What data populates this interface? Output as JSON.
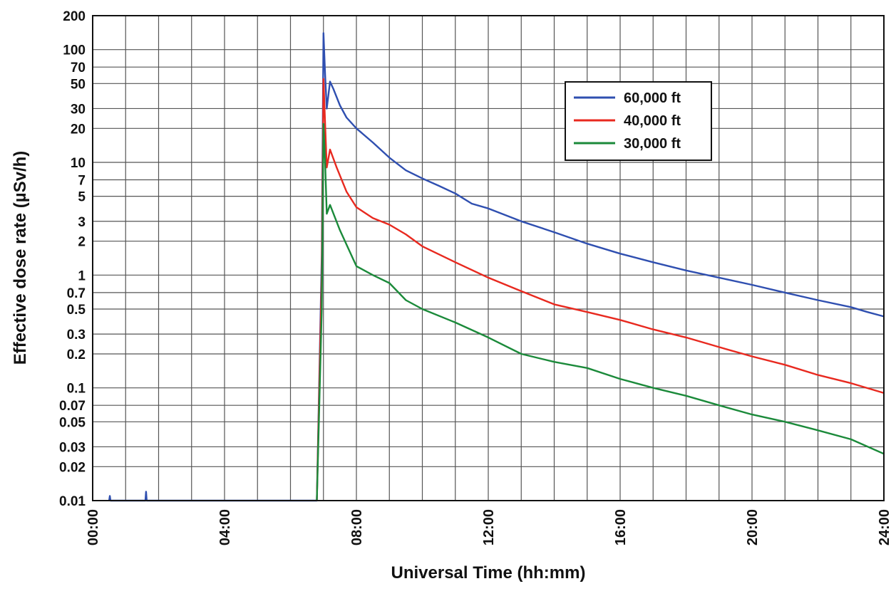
{
  "chart_data": {
    "type": "line",
    "title": "",
    "xlabel": "Universal Time (hh:mm)",
    "ylabel": "Effective dose rate (µSv/h)",
    "x_unit": "hours UT",
    "xlim": [
      0,
      24
    ],
    "ylim": [
      0.01,
      200
    ],
    "yscale": "log",
    "grid": true,
    "legend_position": "top-right",
    "x_tick_labels": [
      "00:00",
      "04:00",
      "08:00",
      "12:00",
      "16:00",
      "20:00",
      "24:00"
    ],
    "y_tick_labels": [
      "200",
      "100",
      "70",
      "50",
      "30",
      "20",
      "10",
      "7",
      "5",
      "3",
      "2",
      "1",
      "0.7",
      "0.5",
      "0.3",
      "0.2",
      "0.1",
      "0.07",
      "0.05",
      "0.03",
      "0.02",
      "0.01"
    ],
    "series": [
      {
        "name": "60,000 ft",
        "color": "#2f4fb0",
        "points": [
          [
            0.5,
            0.01
          ],
          [
            0.52,
            0.011
          ],
          [
            0.54,
            0.01
          ],
          [
            1.6,
            0.01
          ],
          [
            1.62,
            0.012
          ],
          [
            1.64,
            0.01
          ],
          [
            6.8,
            0.01
          ],
          [
            6.95,
            1.5
          ],
          [
            7.0,
            140
          ],
          [
            7.05,
            60
          ],
          [
            7.1,
            30
          ],
          [
            7.2,
            52
          ],
          [
            7.3,
            45
          ],
          [
            7.5,
            32
          ],
          [
            7.7,
            25
          ],
          [
            8.0,
            20
          ],
          [
            8.5,
            15
          ],
          [
            9.0,
            11
          ],
          [
            9.5,
            8.5
          ],
          [
            10.0,
            7.2
          ],
          [
            10.5,
            6.2
          ],
          [
            11.0,
            5.3
          ],
          [
            11.5,
            4.3
          ],
          [
            12.0,
            3.9
          ],
          [
            13.0,
            3.0
          ],
          [
            14.0,
            2.4
          ],
          [
            15.0,
            1.9
          ],
          [
            16.0,
            1.55
          ],
          [
            17.0,
            1.3
          ],
          [
            18.0,
            1.1
          ],
          [
            19.0,
            0.95
          ],
          [
            20.0,
            0.82
          ],
          [
            21.0,
            0.7
          ],
          [
            22.0,
            0.6
          ],
          [
            23.0,
            0.52
          ],
          [
            23.5,
            0.47
          ],
          [
            24.0,
            0.43
          ]
        ]
      },
      {
        "name": "40,000 ft",
        "color": "#e8291f",
        "points": [
          [
            6.8,
            0.01
          ],
          [
            6.95,
            1.0
          ],
          [
            7.0,
            55
          ],
          [
            7.05,
            22
          ],
          [
            7.1,
            9
          ],
          [
            7.2,
            13
          ],
          [
            7.4,
            9
          ],
          [
            7.7,
            5.5
          ],
          [
            8.0,
            4.0
          ],
          [
            8.5,
            3.2
          ],
          [
            9.0,
            2.8
          ],
          [
            9.5,
            2.3
          ],
          [
            10.0,
            1.8
          ],
          [
            11.0,
            1.3
          ],
          [
            12.0,
            0.95
          ],
          [
            13.0,
            0.72
          ],
          [
            14.0,
            0.55
          ],
          [
            15.0,
            0.47
          ],
          [
            16.0,
            0.4
          ],
          [
            17.0,
            0.33
          ],
          [
            18.0,
            0.28
          ],
          [
            19.0,
            0.23
          ],
          [
            20.0,
            0.19
          ],
          [
            21.0,
            0.16
          ],
          [
            22.0,
            0.13
          ],
          [
            23.0,
            0.11
          ],
          [
            24.0,
            0.09
          ]
        ]
      },
      {
        "name": "30,000 ft",
        "color": "#1b8a3a",
        "points": [
          [
            6.8,
            0.01
          ],
          [
            6.95,
            0.5
          ],
          [
            7.0,
            22
          ],
          [
            7.05,
            10
          ],
          [
            7.1,
            3.5
          ],
          [
            7.2,
            4.2
          ],
          [
            7.5,
            2.5
          ],
          [
            8.0,
            1.2
          ],
          [
            8.5,
            1.0
          ],
          [
            9.0,
            0.85
          ],
          [
            9.5,
            0.6
          ],
          [
            10.0,
            0.5
          ],
          [
            11.0,
            0.38
          ],
          [
            12.0,
            0.28
          ],
          [
            13.0,
            0.2
          ],
          [
            14.0,
            0.17
          ],
          [
            15.0,
            0.15
          ],
          [
            16.0,
            0.12
          ],
          [
            17.0,
            0.1
          ],
          [
            18.0,
            0.085
          ],
          [
            19.0,
            0.07
          ],
          [
            20.0,
            0.058
          ],
          [
            21.0,
            0.05
          ],
          [
            22.0,
            0.042
          ],
          [
            23.0,
            0.035
          ],
          [
            24.0,
            0.026
          ]
        ]
      }
    ]
  }
}
